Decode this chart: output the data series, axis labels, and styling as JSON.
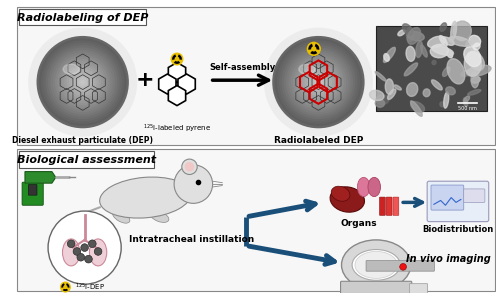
{
  "bg_color": "#ffffff",
  "top_section_title": "Radiolabeling of DEP",
  "bottom_section_title": "Biological assessment",
  "label_dep": "Diesel exhaust particulate (DEP)",
  "label_pyrene": "$^{125}$I-labeled pyrene",
  "label_self_assembly": "Self-assembly",
  "label_radiolabeled": "Radiolabeled DEP",
  "label_intratracheal": "Intratracheal instillation",
  "label_organs": "Organs",
  "label_biodistribution": "Biodistribution",
  "label_invivo": "In vivo imaging",
  "label_idep": "$^{125}$I-DEP",
  "arrow_color": "#1a4f7a",
  "dep_outer": "#999999",
  "dep_mid": "#777777",
  "dep_inner": "#555555",
  "red_color": "#cc0000",
  "yellow_color": "#e8c000",
  "section_border": "#555555",
  "section_bg": "#f0f0f0"
}
